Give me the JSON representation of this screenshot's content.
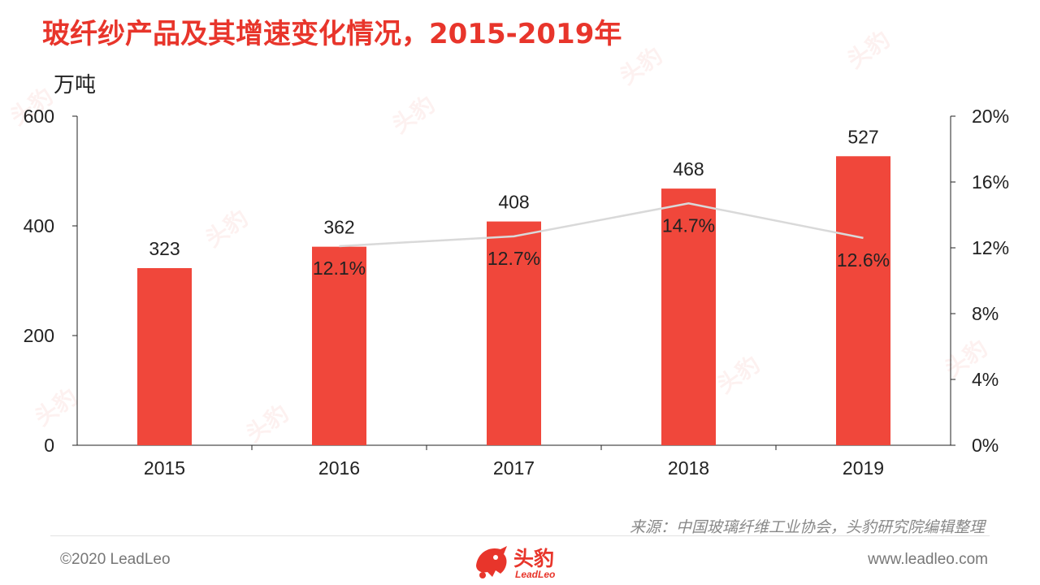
{
  "title": "玻纤纱产品及其增速变化情况，2015-2019年",
  "unit_label": "万吨",
  "source": "来源：中国玻璃纤维工业协会，头豹研究院编辑整理",
  "footer": {
    "copyright": "©2020 LeadLeo",
    "website": "www.leadleo.com",
    "logo_cn": "头豹",
    "logo_en": "LeadLeo"
  },
  "colors": {
    "bar": "#f0473b",
    "line": "#d9d9d9",
    "title": "#e8352b"
  },
  "chart_data": {
    "type": "bar",
    "categories": [
      "2015",
      "2016",
      "2017",
      "2018",
      "2019"
    ],
    "series": [
      {
        "type": "bar",
        "axis": "left",
        "values": [
          323,
          362,
          408,
          468,
          527
        ],
        "labels": [
          "323",
          "362",
          "408",
          "468",
          "527"
        ]
      },
      {
        "type": "line",
        "axis": "right",
        "x": [
          "2016",
          "2017",
          "2018",
          "2019"
        ],
        "values": [
          12.1,
          12.7,
          14.7,
          12.6
        ],
        "labels": [
          "12.1%",
          "12.7%",
          "14.7%",
          "12.6%"
        ]
      }
    ],
    "ylim_left": [
      0,
      600
    ],
    "yticks_left": [
      "0",
      "200",
      "400",
      "600"
    ],
    "ylim_right": [
      0,
      20
    ],
    "yticks_right": [
      "0%",
      "4%",
      "8%",
      "12%",
      "16%",
      "20%"
    ],
    "grid": false,
    "legend": "none"
  }
}
